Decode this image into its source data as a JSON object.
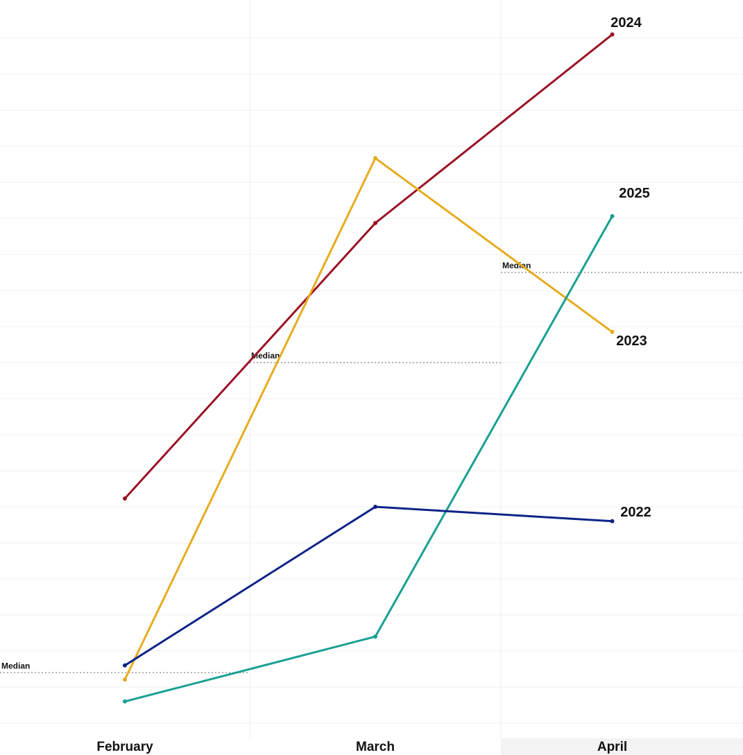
{
  "chart_data": {
    "type": "line",
    "categories": [
      "February",
      "March",
      "April"
    ],
    "series": [
      {
        "name": "2024",
        "color": "#9b1124",
        "values": [
          6.23,
          13.87,
          19.1
        ]
      },
      {
        "name": "2023",
        "color": "#e6ac1e",
        "values": [
          1.21,
          15.67,
          10.85
        ]
      },
      {
        "name": "2025",
        "color": "#17a092",
        "values": [
          0.6,
          2.4,
          14.06
        ]
      },
      {
        "name": "2022",
        "color": "#0e2388",
        "values": [
          1.6,
          6.0,
          5.6
        ]
      }
    ],
    "median_label": "Median",
    "medians": [
      1.4,
      10,
      12.5
    ],
    "ylim": [
      0,
      20
    ],
    "yticks": [
      1,
      2,
      3,
      4,
      5,
      6,
      7,
      8,
      9,
      10,
      11,
      12,
      13,
      14,
      15,
      16,
      17,
      18,
      19
    ],
    "grid": true
  }
}
